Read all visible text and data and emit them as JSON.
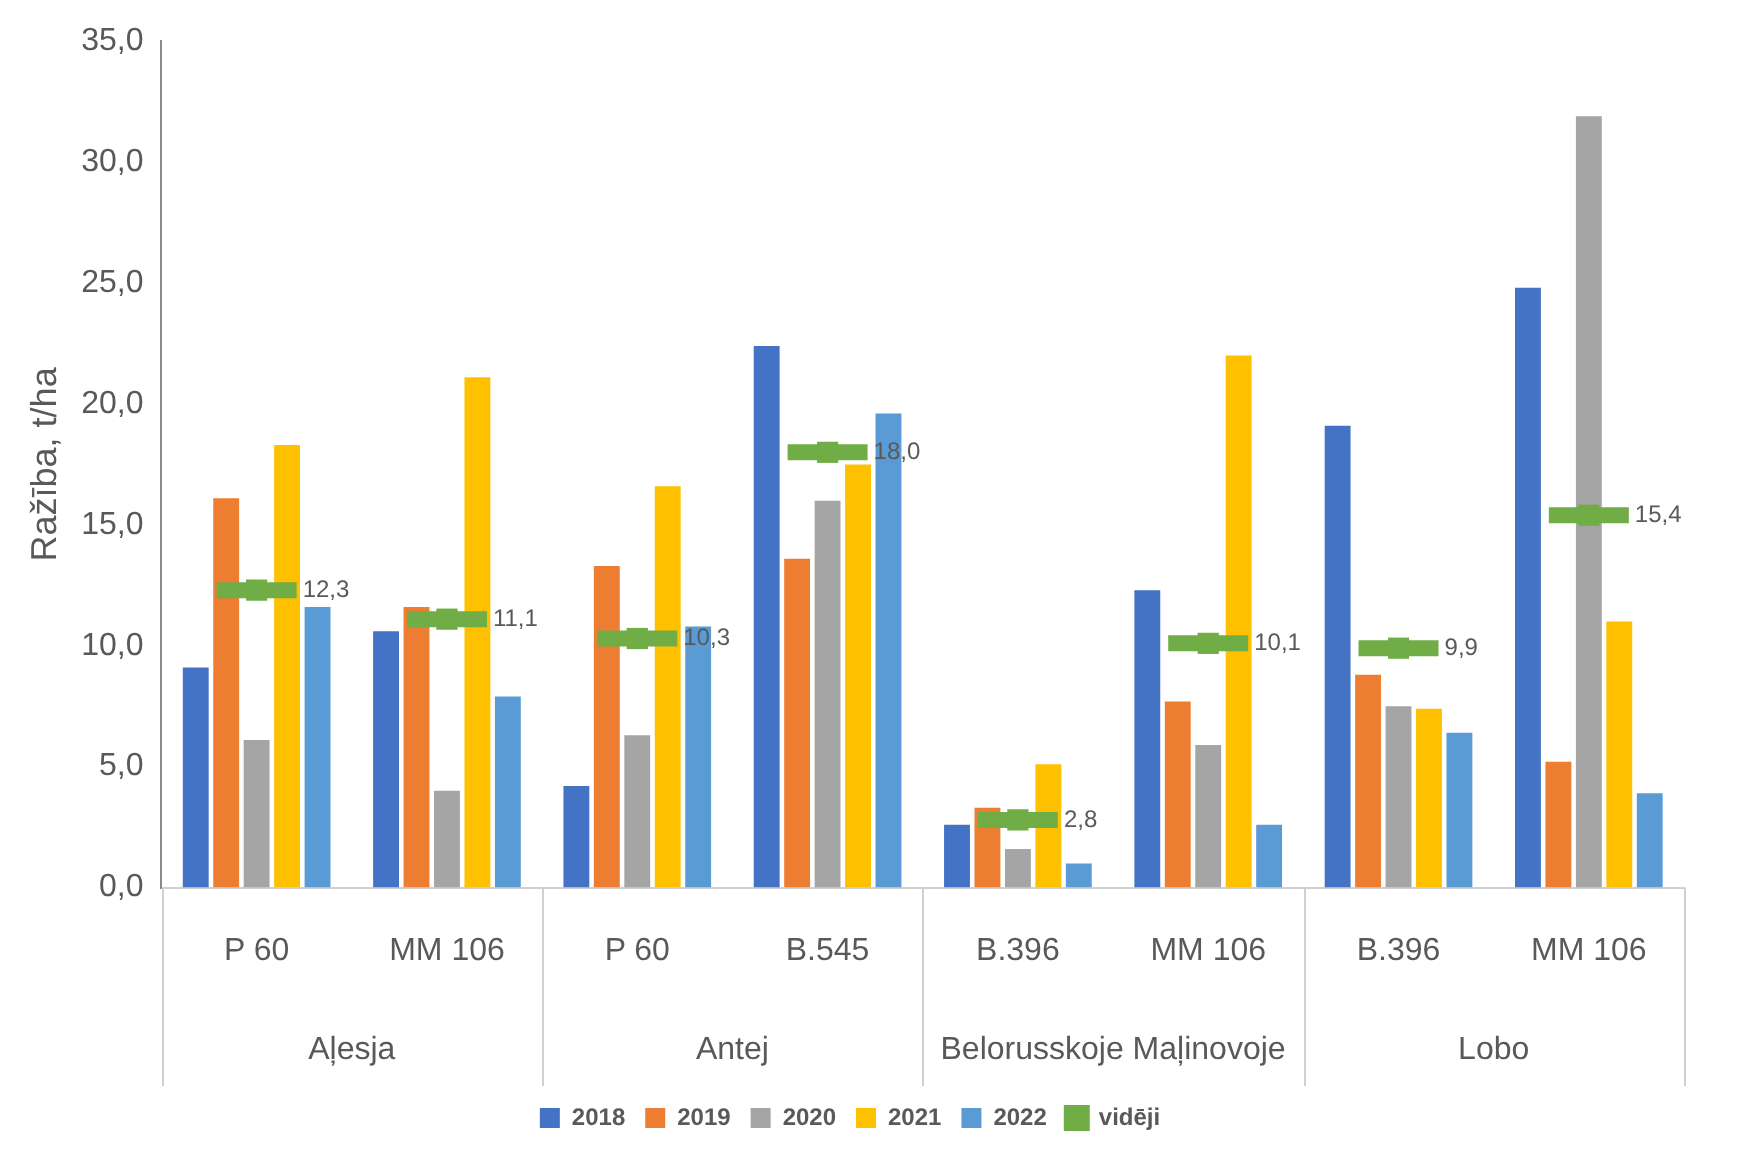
{
  "chart_data": {
    "type": "bar",
    "ylabel": "Ražība, t/ha",
    "categories": [
      "P 60",
      "MM 106",
      "P 60",
      "B.545",
      "B.396",
      "MM 106",
      "B.396",
      "MM 106"
    ],
    "annotations": [
      "Aļesja",
      "Antej",
      "Belorusskoje Maļinovoje",
      "Lobo"
    ],
    "series": [
      {
        "name": "2018",
        "color": "#4472c4",
        "values": [
          9.1,
          10.6,
          4.2,
          22.4,
          2.6,
          12.3,
          19.1,
          24.8
        ]
      },
      {
        "name": "2019",
        "color": "#ed7d31",
        "values": [
          16.1,
          11.6,
          13.3,
          13.6,
          3.3,
          7.7,
          8.8,
          5.2
        ]
      },
      {
        "name": "2020",
        "color": "#a5a5a5",
        "values": [
          6.1,
          4.0,
          6.3,
          16.0,
          1.6,
          5.9,
          7.5,
          31.9
        ]
      },
      {
        "name": "2021",
        "color": "#ffc000",
        "values": [
          18.3,
          21.1,
          16.6,
          17.5,
          5.1,
          22.0,
          7.4,
          11.0
        ]
      },
      {
        "name": "2022",
        "color": "#5b9bd5",
        "values": [
          11.6,
          7.9,
          10.8,
          19.6,
          1.0,
          2.6,
          6.4,
          3.9
        ]
      },
      {
        "name": "vidēji",
        "type": "scatter",
        "color": "#70ad47",
        "values": [
          12.3,
          11.1,
          10.3,
          18.0,
          2.8,
          10.1,
          9.9,
          15.4
        ],
        "value_labels": [
          "12,3",
          "11,1",
          "10,3",
          "18,0",
          "2,8",
          "10,1",
          "9,9",
          "15,4"
        ]
      }
    ],
    "ylim": [
      0,
      35
    ],
    "yticks": [
      {
        "value": 0,
        "label": "0,0"
      },
      {
        "value": 5,
        "label": "5,0"
      },
      {
        "value": 10,
        "label": "10,0"
      },
      {
        "value": 15,
        "label": "15,0"
      },
      {
        "value": 20,
        "label": "20,0"
      },
      {
        "value": 25,
        "label": "25,0"
      },
      {
        "value": 30,
        "label": "30,0"
      },
      {
        "value": 35,
        "label": "35,0"
      }
    ],
    "legend": "bottom"
  }
}
